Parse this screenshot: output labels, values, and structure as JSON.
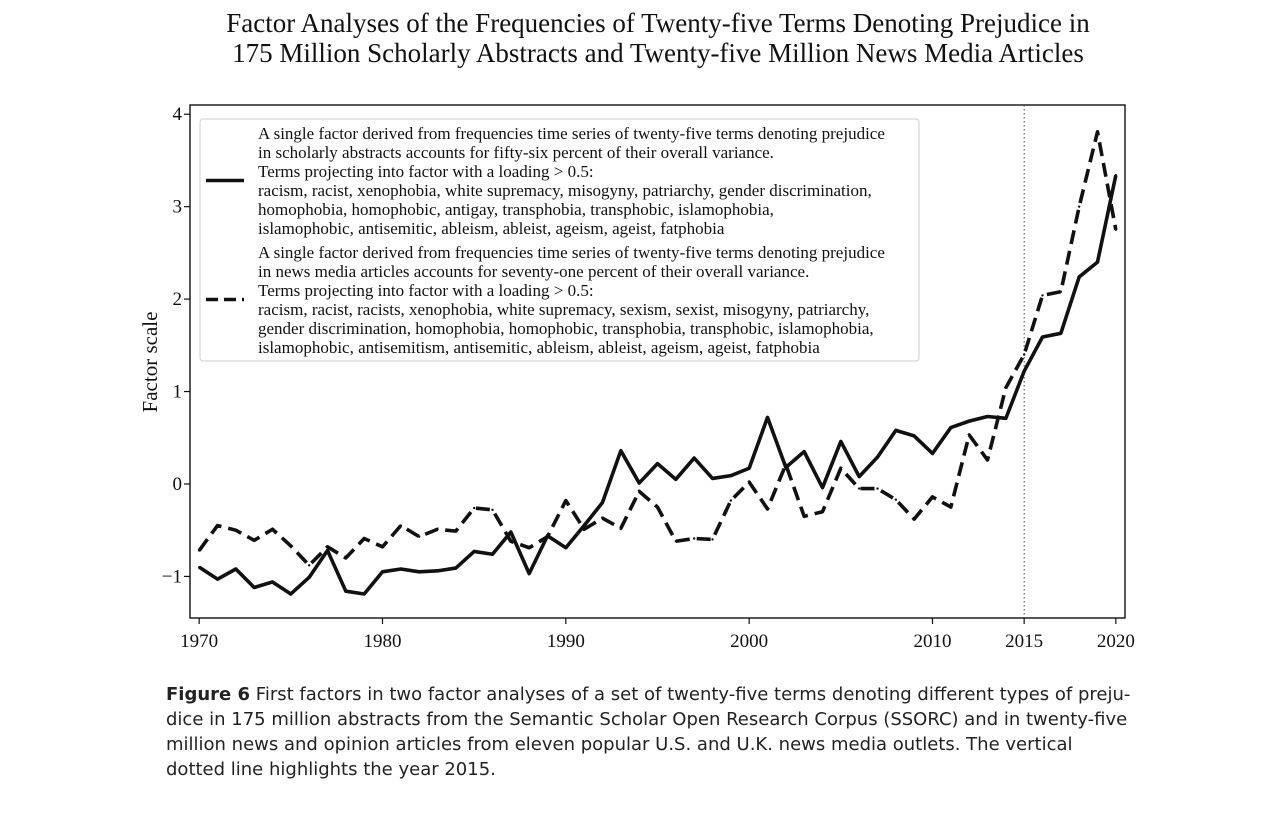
{
  "chart_data": {
    "type": "line",
    "title": [
      "Factor Analyses of the Frequencies of Twenty-five Terms Denoting Prejudice in",
      "175 Million Scholarly Abstracts and Twenty-five Million News Media Articles"
    ],
    "xlabel": "",
    "ylabel": "Factor scale",
    "xlim": [
      1969.5,
      2020.5
    ],
    "ylim": [
      -1.45,
      4.1
    ],
    "x_ticks": [
      "1970",
      "1980",
      "1990",
      "2000",
      "2010",
      "2015",
      "2020"
    ],
    "y_ticks": [
      "−1",
      "0",
      "1",
      "2",
      "3",
      "4"
    ],
    "vertical_line": {
      "x": 2015,
      "style": "dotted"
    },
    "grid": false,
    "legend_position": "top-left",
    "x": [
      1970,
      1971,
      1972,
      1973,
      1974,
      1975,
      1976,
      1977,
      1978,
      1979,
      1980,
      1981,
      1982,
      1983,
      1984,
      1985,
      1986,
      1987,
      1988,
      1989,
      1990,
      1991,
      1992,
      1993,
      1994,
      1995,
      1996,
      1997,
      1998,
      1999,
      2000,
      2001,
      2002,
      2003,
      2004,
      2005,
      2006,
      2007,
      2008,
      2009,
      2010,
      2011,
      2012,
      2013,
      2014,
      2015,
      2016,
      2017,
      2018,
      2019,
      2020
    ],
    "series": [
      {
        "style": "solid",
        "legend": [
          "A single factor derived from frequencies time series of twenty-five terms denoting prejudice",
          "in scholarly abstracts accounts for fifty-six percent of their overall variance.",
          "Terms projecting into factor with a loading > 0.5:",
          "racism, racist, xenophobia, white supremacy, misogyny, patriarchy, gender discrimination,",
          "homophobia, homophobic, antigay, transphobia, transphobic, islamophobia,",
          "islamophobic, antisemitic, ableism, ableist, ageism, ageist, fatphobia"
        ],
        "values": [
          -0.9,
          -1.03,
          -0.92,
          -1.12,
          -1.06,
          -1.19,
          -1.01,
          -0.72,
          -1.16,
          -1.19,
          -0.95,
          -0.92,
          -0.95,
          -0.94,
          -0.91,
          -0.73,
          -0.76,
          -0.52,
          -0.97,
          -0.56,
          -0.69,
          -0.45,
          -0.2,
          0.36,
          0.01,
          0.22,
          0.05,
          0.28,
          0.06,
          0.09,
          0.17,
          0.72,
          0.18,
          0.35,
          -0.04,
          0.46,
          0.08,
          0.29,
          0.58,
          0.52,
          0.33,
          0.61,
          0.68,
          0.73,
          0.71,
          1.22,
          1.59,
          1.63,
          2.24,
          2.4,
          3.34
        ]
      },
      {
        "style": "dashed",
        "legend": [
          "A single factor derived from frequencies time series of twenty-five terms denoting prejudice",
          "in news media articles accounts for seventy-one percent of their overall variance.",
          "Terms projecting into factor with a loading > 0.5:",
          "racism, racist, racists, xenophobia, white supremacy, sexism, sexist, misogyny, patriarchy,",
          "gender discrimination, homophobia, homophobic, transphobia, transphobic, islamophobia,",
          "islamophobic, antisemitism, antisemitic, ableism, ableist, ageism, ageist, fatphobia"
        ],
        "values": [
          -0.72,
          -0.45,
          -0.5,
          -0.61,
          -0.49,
          -0.67,
          -0.88,
          -0.68,
          -0.8,
          -0.59,
          -0.68,
          -0.45,
          -0.57,
          -0.49,
          -0.51,
          -0.26,
          -0.28,
          -0.62,
          -0.69,
          -0.57,
          -0.18,
          -0.49,
          -0.37,
          -0.48,
          -0.08,
          -0.25,
          -0.62,
          -0.59,
          -0.6,
          -0.18,
          0.02,
          -0.27,
          0.21,
          -0.35,
          -0.3,
          0.17,
          -0.05,
          -0.05,
          -0.17,
          -0.38,
          -0.14,
          -0.25,
          0.53,
          0.26,
          1.04,
          1.4,
          2.04,
          2.08,
          3.0,
          3.81,
          2.75
        ]
      }
    ]
  },
  "caption": {
    "figure_label": "Figure 6",
    "lines": [
      " First factors in two factor analyses of a set of twenty-five terms denoting different types of preju-",
      "dice in 175 million abstracts from the Semantic Scholar Open Research Corpus (SSORC) and in twenty-five",
      "million news and opinion articles from eleven popular U.S. and U.K. news media outlets. The vertical",
      "dotted line highlights the year 2015."
    ]
  }
}
